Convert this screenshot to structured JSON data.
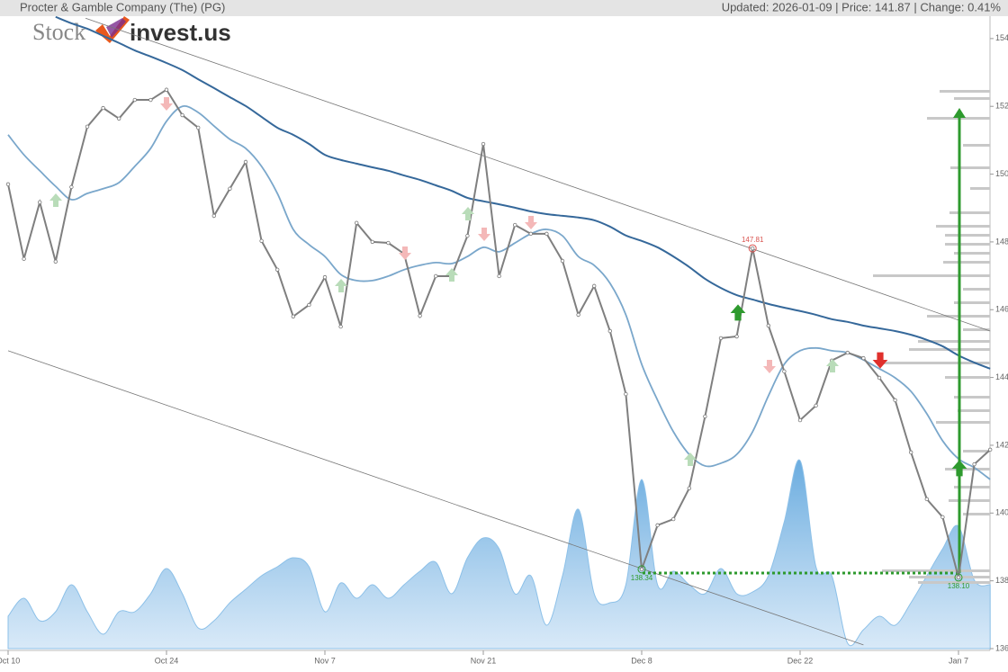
{
  "chart_data": {
    "type": "line",
    "title": "Procter & Gamble Company (The) (PG)",
    "subtitle": "Updated: 2026-01-09 | Price: 141.87 | Change: 0.41%",
    "logo": [
      "Stock",
      "invest.us"
    ],
    "categories": [
      "Oct 10",
      null,
      null,
      null,
      null,
      null,
      null,
      null,
      null,
      null,
      "Oct 24",
      null,
      null,
      null,
      null,
      null,
      null,
      null,
      null,
      null,
      "Nov 7",
      null,
      null,
      null,
      null,
      null,
      null,
      null,
      null,
      null,
      "Nov 21",
      null,
      null,
      null,
      null,
      null,
      null,
      null,
      null,
      null,
      "Dec 8",
      null,
      null,
      null,
      null,
      null,
      null,
      null,
      null,
      null,
      "Dec 22",
      null,
      null,
      null,
      null,
      null,
      null,
      null,
      null,
      null,
      "Jan 7",
      null,
      null
    ],
    "ylim": [
      136,
      154.66
    ],
    "yticks": [
      136,
      138,
      140,
      142,
      144,
      146,
      148,
      150,
      152,
      154
    ],
    "y2lim": [
      0,
      230
    ],
    "series": [
      {
        "color": "#7f7f7f",
        "values": [
          149.7,
          147.5,
          149.17,
          147.42,
          149.62,
          151.4,
          151.95,
          151.64,
          152.19,
          152.19,
          152.49,
          151.74,
          151.37,
          148.77,
          149.57,
          150.36,
          148.03,
          147.18,
          145.8,
          146.14,
          146.96,
          145.5,
          148.56,
          148.0,
          147.97,
          147.65,
          145.82,
          146.99,
          146.99,
          148.18,
          150.89,
          146.99,
          148.5,
          148.24,
          148.24,
          147.44,
          145.85,
          146.7,
          145.37,
          143.51,
          138.34,
          139.64,
          139.82,
          140.73,
          142.85,
          145.16,
          145.21,
          147.81,
          145.53,
          144.18,
          142.74,
          143.17,
          144.5,
          144.73,
          144.57,
          143.99,
          143.33,
          141.79,
          140.41,
          139.88,
          138.1,
          141.44,
          141.87
        ],
        "value_labels": [
          null,
          null,
          null,
          null,
          null,
          null,
          null,
          null,
          null,
          null,
          null,
          null,
          null,
          null,
          null,
          null,
          null,
          null,
          null,
          null,
          null,
          null,
          null,
          null,
          null,
          null,
          null,
          null,
          null,
          null,
          null,
          null,
          null,
          null,
          null,
          null,
          null,
          null,
          null,
          null,
          "138.34",
          null,
          null,
          null,
          null,
          null,
          null,
          "147.81",
          null,
          null,
          null,
          null,
          null,
          null,
          null,
          null,
          null,
          null,
          null,
          null,
          "138.10",
          null,
          null
        ]
      },
      {
        "color": "#7aa7cb",
        "values": [
          151.16,
          150.57,
          150.1,
          149.64,
          149.25,
          149.43,
          149.57,
          149.75,
          150.23,
          150.76,
          151.56,
          152.0,
          151.82,
          151.42,
          151.03,
          150.76,
          150.23,
          149.43,
          148.37,
          147.92,
          147.57,
          147.04,
          146.86,
          146.86,
          146.99,
          147.18,
          147.31,
          147.39,
          147.36,
          147.57,
          147.84,
          147.71,
          147.97,
          148.24,
          148.37,
          148.18,
          147.57,
          147.31,
          146.78,
          145.85,
          144.39,
          143.33,
          142.4,
          141.73,
          141.39,
          141.47,
          141.73,
          142.4,
          143.46,
          144.39,
          144.79,
          144.87,
          144.79,
          144.73,
          144.52,
          144.26,
          143.99,
          143.59,
          142.93,
          142.13,
          141.6,
          141.34,
          140.99
        ]
      },
      {
        "color": "#35689a",
        "values": [
          null,
          null,
          null,
          154.64,
          154.45,
          154.29,
          154.08,
          153.87,
          153.65,
          153.47,
          153.28,
          153.07,
          152.8,
          152.54,
          152.27,
          152.01,
          151.69,
          151.37,
          151.16,
          150.89,
          150.57,
          150.42,
          150.31,
          150.2,
          150.1,
          149.96,
          149.83,
          149.67,
          149.51,
          149.3,
          149.2,
          149.11,
          149.01,
          148.9,
          148.82,
          148.77,
          148.72,
          148.64,
          148.45,
          148.19,
          148.03,
          147.84,
          147.57,
          147.26,
          146.91,
          146.64,
          146.43,
          146.3,
          146.17,
          146.06,
          145.96,
          145.85,
          145.72,
          145.64,
          145.53,
          145.45,
          145.37,
          145.26,
          145.11,
          144.92,
          144.65,
          144.44,
          144.26
        ]
      },
      {
        "color": "#6aaee0",
        "axis": "y2",
        "values": [
          36,
          56,
          31,
          41,
          71,
          41,
          16,
          41,
          41,
          61,
          89,
          61,
          23,
          31,
          51,
          66,
          81,
          91,
          101,
          91,
          41,
          73,
          56,
          71,
          56,
          71,
          86,
          96,
          61,
          101,
          123,
          111,
          61,
          81,
          26,
          81,
          155,
          61,
          51,
          71,
          188,
          71,
          86,
          71,
          61,
          89,
          61,
          63,
          81,
          141,
          209,
          91,
          81,
          6,
          21,
          36,
          26,
          51,
          81,
          111,
          136,
          76,
          71
        ]
      }
    ],
    "trendlines": [
      {
        "x": [
          4.89,
          62
        ],
        "y": [
          154.6,
          145.37
        ]
      },
      {
        "x": [
          0,
          54
        ],
        "y": [
          144.79,
          136.11
        ]
      }
    ]
  }
}
